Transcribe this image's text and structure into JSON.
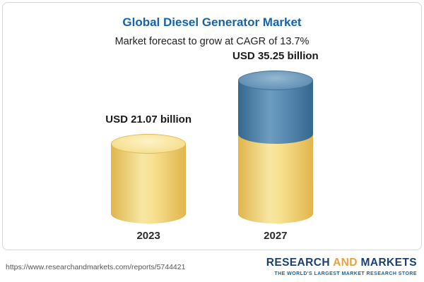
{
  "page": {
    "title": "Global Diesel Generator Market",
    "subtitle": "Market forecast to grow at CAGR of 13.7%"
  },
  "chart_data": {
    "type": "bar",
    "variant": "3d-cylinder",
    "categories": [
      "2023",
      "2027"
    ],
    "values": [
      21.07,
      35.25
    ],
    "value_labels": [
      "USD 21.07 billion",
      "USD 35.25 billion"
    ],
    "unit": "USD billion",
    "title": "Global Diesel Generator Market",
    "subtitle": "Market forecast to grow at CAGR of 13.7%",
    "cagr": "13.7%",
    "colors": {
      "base_segment": "#f2d77e",
      "growth_segment": "#4e81a9",
      "title": "#1663ad"
    },
    "notes": "2027 bar shows 2023 base value in yellow with incremental growth segment in blue on top"
  },
  "footer": {
    "url": "https://www.researchandmarkets.com/reports/5744421",
    "logo_research": "RESEARCH ",
    "logo_and": "AND",
    "logo_markets": " MARKETS",
    "tagline": "THE WORLD'S LARGEST MARKET RESEARCH STORE"
  }
}
